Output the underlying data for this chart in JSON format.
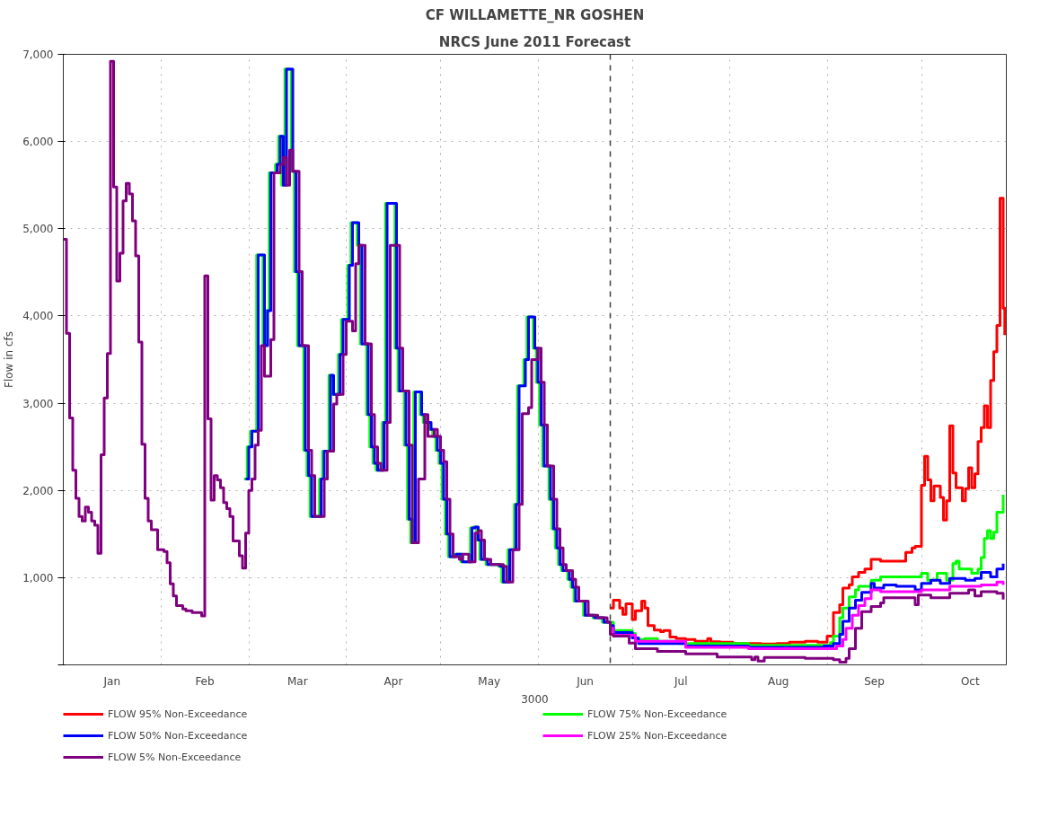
{
  "chart_data": {
    "type": "step",
    "title": "CF WILLAMETTE_NR GOSHEN",
    "subtitle": "NRCS June 2011 Forecast",
    "xlabel": "3000",
    "ylabel": "Flow in cfs",
    "xlim": [
      "3000-01-01",
      "3000-10-28"
    ],
    "ylim": [
      0,
      7000
    ],
    "xticks": [
      {
        "value": "3000-01-01",
        "label": null
      },
      {
        "value": "3000-01-16T12:00",
        "label": "Jan"
      },
      {
        "value": "3000-02-01",
        "label": null
      },
      {
        "value": "3000-02-15",
        "label": "Feb"
      },
      {
        "value": "3000-03-01",
        "label": null
      },
      {
        "value": "3000-03-16T12:00",
        "label": "Mar"
      },
      {
        "value": "3000-04-01",
        "label": null
      },
      {
        "value": "3000-04-16",
        "label": "Apr"
      },
      {
        "value": "3000-05-01",
        "label": null
      },
      {
        "value": "3000-05-16T12:00",
        "label": "May"
      },
      {
        "value": "3000-06-01",
        "label": null
      },
      {
        "value": "3000-06-16",
        "label": "Jun"
      },
      {
        "value": "3000-07-01",
        "label": null
      },
      {
        "value": "3000-07-16T12:00",
        "label": "Jul"
      },
      {
        "value": "3000-08-01",
        "label": null
      },
      {
        "value": "3000-08-16T12:00",
        "label": "Aug"
      },
      {
        "value": "3000-09-01",
        "label": null
      },
      {
        "value": "3000-09-16",
        "label": "Sep"
      },
      {
        "value": "3000-10-01",
        "label": null
      },
      {
        "value": "3000-10-16T12:00",
        "label": "Oct"
      }
    ],
    "yticks": [
      {
        "value": 0,
        "label": null
      },
      {
        "value": 1000,
        "label": "1,000"
      },
      {
        "value": 2000,
        "label": "2,000"
      },
      {
        "value": 3000,
        "label": "3,000"
      },
      {
        "value": 4000,
        "label": "4,000"
      },
      {
        "value": 5000,
        "label": "5,000"
      },
      {
        "value": 6000,
        "label": "6,000"
      },
      {
        "value": 7000,
        "label": "7,000"
      }
    ],
    "grid": true,
    "legend": "bottom",
    "line_style": "solid",
    "marker": "none",
    "ref_lines": [
      {
        "axis": "x",
        "value": "3000-06-24",
        "label": null,
        "color": "#404040",
        "line_style": "dashed"
      }
    ],
    "series": [
      {
        "name": "FLOW 95% Non-Exceedance",
        "color": "#ff0000",
        "x": [
          "3000-06-24",
          "3000-06-25",
          "3000-06-27",
          "3000-06-28",
          "3000-06-29",
          "3000-07-01",
          "3000-07-02",
          "3000-07-04",
          "3000-07-05",
          "3000-07-06",
          "3000-07-08",
          "3000-07-10",
          "3000-07-11",
          "3000-07-13",
          "3000-07-15",
          "3000-07-18",
          "3000-07-21",
          "3000-07-25",
          "3000-07-26",
          "3000-07-29",
          "3000-08-02",
          "3000-08-11",
          "3000-08-16",
          "3000-08-20",
          "3000-08-25",
          "3000-08-29",
          "3000-09-01",
          "3000-09-03",
          "3000-09-05",
          "3000-09-06",
          "3000-09-08",
          "3000-09-09",
          "3000-09-11",
          "3000-09-13",
          "3000-09-15",
          "3000-09-18",
          "3000-09-26",
          "3000-09-28",
          "3000-09-29",
          "3000-10-01",
          "3000-10-02",
          "3000-10-03",
          "3000-10-04",
          "3000-10-05",
          "3000-10-07",
          "3000-10-08",
          "3000-10-09",
          "3000-10-10",
          "3000-10-11",
          "3000-10-12",
          "3000-10-14",
          "3000-10-15",
          "3000-10-16",
          "3000-10-17",
          "3000-10-18",
          "3000-10-19",
          "3000-10-20",
          "3000-10-21",
          "3000-10-22",
          "3000-10-23",
          "3000-10-24",
          "3000-10-25",
          "3000-10-26",
          "3000-10-27",
          "3000-10-27T12:00"
        ],
        "values": [
          650,
          740,
          650,
          580,
          700,
          520,
          620,
          730,
          650,
          450,
          400,
          380,
          395,
          320,
          300,
          290,
          270,
          300,
          265,
          260,
          245,
          240,
          245,
          260,
          270,
          260,
          330,
          600,
          690,
          880,
          920,
          1010,
          1060,
          1100,
          1210,
          1190,
          1290,
          1340,
          1360,
          2060,
          2390,
          2120,
          1880,
          2050,
          1920,
          1660,
          1880,
          2740,
          2200,
          2030,
          1880,
          2020,
          2260,
          2030,
          2190,
          2560,
          2720,
          2970,
          2720,
          3260,
          3590,
          3890,
          5350,
          4090,
          3780
        ]
      },
      {
        "name": "FLOW 75% Non-Exceedance",
        "color": "#00ff00",
        "x": [
          "3000-02-27T12:00",
          "3000-02-28T12:00",
          "3000-03-01T12:00",
          "3000-03-03T12:00",
          "3000-03-05T12:00",
          "3000-03-06T12:00",
          "3000-03-07T12:00",
          "3000-03-09T12:00",
          "3000-03-10T12:00",
          "3000-03-11T12:00",
          "3000-03-12T12:00",
          "3000-03-14T12:00",
          "3000-03-15T12:00",
          "3000-03-16T12:00",
          "3000-03-18T12:00",
          "3000-03-19T12:00",
          "3000-03-20T12:00",
          "3000-03-23T12:00",
          "3000-03-24T12:00",
          "3000-03-26T12:00",
          "3000-03-27T12:00",
          "3000-03-29T12:00",
          "3000-03-30T12:00",
          "3000-04-01T12:00",
          "3000-04-02T12:00",
          "3000-04-04T12:00",
          "3000-04-05T12:00",
          "3000-04-07T12:00",
          "3000-04-08T12:00",
          "3000-04-09T12:00",
          "3000-04-10T12:00",
          "3000-04-12T12:00",
          "3000-04-13T12:00",
          "3000-04-16T12:00",
          "3000-04-17T12:00",
          "3000-04-19T12:00",
          "3000-04-20T12:00",
          "3000-04-21T12:00",
          "3000-04-22T12:00",
          "3000-04-24T12:00",
          "3000-04-25T12:00",
          "3000-04-27T12:00",
          "3000-04-28T12:00",
          "3000-04-29T12:00",
          "3000-04-30T12:00",
          "3000-05-01T12:00",
          "3000-05-02T12:00",
          "3000-05-03T12:00",
          "3000-05-05T12:00",
          "3000-05-07T12:00",
          "3000-05-10T12:00",
          "3000-05-11T12:00",
          "3000-05-12T12:00",
          "3000-05-13T12:00",
          "3000-05-15T12:00",
          "3000-05-19T12:00",
          "3000-05-20T12:00",
          "3000-05-22T12:00",
          "3000-05-24T12:00",
          "3000-05-25T12:00",
          "3000-05-27T12:00",
          "3000-05-28T12:00",
          "3000-05-30T12:00",
          "3000-05-31T12:00",
          "3000-06-01T12:00",
          "3000-06-02T12:00",
          "3000-06-04T12:00",
          "3000-06-05T12:00",
          "3000-06-06T12:00",
          "3000-06-07T12:00",
          "3000-06-08T12:00",
          "3000-06-10T12:00",
          "3000-06-11T12:00",
          "3000-06-12T12:00",
          "3000-06-15T12:00",
          "3000-06-18T12:00",
          "3000-06-21T12:00",
          "3000-06-24",
          "3000-06-25",
          "3000-07-01",
          "3000-07-02",
          "3000-07-05",
          "3000-07-09",
          "3000-07-16",
          "3000-08-07",
          "3000-09-02",
          "3000-09-03",
          "3000-09-05",
          "3000-09-06",
          "3000-09-08",
          "3000-09-10",
          "3000-09-11",
          "3000-09-15",
          "3000-09-18",
          "3000-10-01",
          "3000-10-03",
          "3000-10-06",
          "3000-10-09",
          "3000-10-11",
          "3000-10-12",
          "3000-10-13",
          "3000-10-17",
          "3000-10-19",
          "3000-10-20",
          "3000-10-21",
          "3000-10-22",
          "3000-10-23",
          "3000-10-24",
          "3000-10-25",
          "3000-10-27"
        ],
        "values": [
          2130,
          2500,
          2680,
          4700,
          3660,
          4060,
          5640,
          5740,
          6060,
          5500,
          6830,
          5660,
          4510,
          3660,
          2460,
          2170,
          1700,
          2130,
          2450,
          3320,
          3100,
          3560,
          3960,
          4580,
          5070,
          4810,
          3680,
          2870,
          2500,
          2310,
          2230,
          2780,
          5290,
          3630,
          3140,
          2520,
          1670,
          1400,
          3130,
          2870,
          2780,
          2700,
          2620,
          2460,
          2310,
          1900,
          1500,
          1240,
          1270,
          1180,
          1570,
          1580,
          1430,
          1210,
          1150,
          1130,
          950,
          1320,
          1840,
          3200,
          3500,
          3990,
          3630,
          3240,
          2750,
          2280,
          1900,
          1560,
          1340,
          1150,
          1080,
          980,
          890,
          730,
          570,
          540,
          490,
          490,
          395,
          360,
          290,
          300,
          270,
          245,
          225,
          255,
          330,
          540,
          650,
          780,
          860,
          900,
          970,
          1010,
          1050,
          970,
          1050,
          970,
          1160,
          1190,
          1100,
          1050,
          1100,
          1230,
          1450,
          1540,
          1450,
          1520,
          1750,
          1950
        ]
      },
      {
        "name": "FLOW 50% Non-Exceedance",
        "color": "#0000ff",
        "x": [
          "3000-02-28",
          "3000-03-01",
          "3000-03-02",
          "3000-03-04",
          "3000-03-06",
          "3000-03-07",
          "3000-03-08",
          "3000-03-10",
          "3000-03-11",
          "3000-03-12",
          "3000-03-13",
          "3000-03-15",
          "3000-03-16",
          "3000-03-17",
          "3000-03-19",
          "3000-03-20",
          "3000-03-21",
          "3000-03-24",
          "3000-03-25",
          "3000-03-27",
          "3000-03-28",
          "3000-03-30",
          "3000-03-31",
          "3000-04-02",
          "3000-04-03",
          "3000-04-05",
          "3000-04-06",
          "3000-04-08",
          "3000-04-09",
          "3000-04-10",
          "3000-04-11",
          "3000-04-13",
          "3000-04-14",
          "3000-04-17",
          "3000-04-18",
          "3000-04-20",
          "3000-04-21",
          "3000-04-22",
          "3000-04-23",
          "3000-04-25",
          "3000-04-26",
          "3000-04-28",
          "3000-04-29",
          "3000-04-30",
          "3000-05-01",
          "3000-05-02",
          "3000-05-03",
          "3000-05-04",
          "3000-05-06",
          "3000-05-08",
          "3000-05-11",
          "3000-05-12",
          "3000-05-13",
          "3000-05-14",
          "3000-05-16",
          "3000-05-20",
          "3000-05-21",
          "3000-05-23",
          "3000-05-25",
          "3000-05-26",
          "3000-05-28",
          "3000-05-29",
          "3000-05-31",
          "3000-06-01",
          "3000-06-02",
          "3000-06-03",
          "3000-06-05",
          "3000-06-06",
          "3000-06-07",
          "3000-06-08",
          "3000-06-09",
          "3000-06-11",
          "3000-06-12",
          "3000-06-13",
          "3000-06-16",
          "3000-06-19",
          "3000-06-22",
          "3000-06-24",
          "3000-06-25",
          "3000-07-01",
          "3000-07-03",
          "3000-07-18",
          "3000-08-07",
          "3000-08-31",
          "3000-09-03",
          "3000-09-05",
          "3000-09-06",
          "3000-09-08",
          "3000-09-10",
          "3000-09-12",
          "3000-09-15",
          "3000-09-16",
          "3000-09-19",
          "3000-09-23",
          "3000-09-29",
          "3000-10-01",
          "3000-10-04",
          "3000-10-07",
          "3000-10-10",
          "3000-10-15",
          "3000-10-18",
          "3000-10-20",
          "3000-10-23",
          "3000-10-25",
          "3000-10-27"
        ],
        "values": [
          2130,
          2500,
          2680,
          4700,
          3660,
          4060,
          5640,
          5740,
          6060,
          5500,
          6830,
          5660,
          4510,
          3660,
          2460,
          2170,
          1700,
          2130,
          2450,
          3320,
          3100,
          3560,
          3960,
          4580,
          5070,
          4810,
          3680,
          2870,
          2500,
          2310,
          2230,
          2780,
          5290,
          3630,
          3140,
          2520,
          1670,
          1400,
          3130,
          2870,
          2780,
          2700,
          2620,
          2460,
          2310,
          1900,
          1500,
          1240,
          1270,
          1180,
          1570,
          1580,
          1430,
          1210,
          1150,
          1130,
          950,
          1320,
          1840,
          3200,
          3500,
          3990,
          3630,
          3240,
          2750,
          2280,
          1900,
          1560,
          1340,
          1150,
          1080,
          980,
          890,
          730,
          570,
          540,
          490,
          450,
          370,
          310,
          245,
          215,
          200,
          215,
          245,
          350,
          500,
          650,
          740,
          830,
          935,
          880,
          915,
          900,
          860,
          935,
          970,
          935,
          990,
          970,
          990,
          1060,
          1010,
          1100,
          1160
        ]
      },
      {
        "name": "FLOW 25% Non-Exceedance",
        "color": "#ff00ff",
        "x": [
          "3000-06-24",
          "3000-06-25",
          "3000-07-02",
          "3000-07-18",
          "3000-08-07",
          "3000-09-04",
          "3000-09-06",
          "3000-09-07",
          "3000-09-09",
          "3000-09-11",
          "3000-09-13",
          "3000-09-15",
          "3000-09-18",
          "3000-10-01",
          "3000-10-10",
          "3000-10-20",
          "3000-10-25",
          "3000-10-27"
        ],
        "values": [
          420,
          340,
          270,
          200,
          185,
          215,
          290,
          420,
          570,
          680,
          760,
          860,
          840,
          860,
          900,
          915,
          950,
          915
        ]
      },
      {
        "name": "FLOW 5% Non-Exceedance",
        "color": "#800080",
        "x": [
          "3000-01-01",
          "3000-01-02",
          "3000-01-03",
          "3000-01-04",
          "3000-01-05",
          "3000-01-06",
          "3000-01-07",
          "3000-01-08",
          "3000-01-09",
          "3000-01-10",
          "3000-01-11",
          "3000-01-12",
          "3000-01-13",
          "3000-01-14",
          "3000-01-15",
          "3000-01-16",
          "3000-01-17",
          "3000-01-18",
          "3000-01-19",
          "3000-01-20",
          "3000-01-21",
          "3000-01-22",
          "3000-01-23",
          "3000-01-24",
          "3000-01-25",
          "3000-01-26",
          "3000-01-27",
          "3000-01-28",
          "3000-01-29",
          "3000-01-31",
          "3000-02-02",
          "3000-02-03",
          "3000-02-04",
          "3000-02-05",
          "3000-02-06",
          "3000-02-08",
          "3000-02-09",
          "3000-02-11",
          "3000-02-14",
          "3000-02-15",
          "3000-02-16",
          "3000-02-17",
          "3000-02-18",
          "3000-02-19",
          "3000-02-20",
          "3000-02-21",
          "3000-02-22",
          "3000-02-23",
          "3000-02-24",
          "3000-02-26",
          "3000-02-27",
          "3000-02-28",
          "3000-03-01",
          "3000-03-02",
          "3000-03-03",
          "3000-03-04",
          "3000-03-05",
          "3000-03-06",
          "3000-03-08",
          "3000-03-09",
          "3000-03-11",
          "3000-03-12",
          "3000-03-13",
          "3000-03-14",
          "3000-03-15",
          "3000-03-17",
          "3000-03-18",
          "3000-03-20",
          "3000-03-21",
          "3000-03-22",
          "3000-03-25",
          "3000-03-26",
          "3000-03-28",
          "3000-03-29",
          "3000-03-31",
          "3000-04-01",
          "3000-04-03",
          "3000-04-04",
          "3000-04-05",
          "3000-04-07",
          "3000-04-09",
          "3000-04-10",
          "3000-04-11",
          "3000-04-12",
          "3000-04-14",
          "3000-04-15",
          "3000-04-18",
          "3000-04-19",
          "3000-04-21",
          "3000-04-22",
          "3000-04-24",
          "3000-04-26",
          "3000-04-27",
          "3000-04-29",
          "3000-04-30",
          "3000-05-01",
          "3000-05-02",
          "3000-05-03",
          "3000-05-04",
          "3000-05-05",
          "3000-05-07",
          "3000-05-08",
          "3000-05-10",
          "3000-05-12",
          "3000-05-13",
          "3000-05-14",
          "3000-05-15",
          "3000-05-17",
          "3000-05-21",
          "3000-05-22",
          "3000-05-24",
          "3000-05-26",
          "3000-05-27",
          "3000-05-29",
          "3000-05-30",
          "3000-06-01",
          "3000-06-02",
          "3000-06-03",
          "3000-06-04",
          "3000-06-06",
          "3000-06-07",
          "3000-06-08",
          "3000-06-09",
          "3000-06-10",
          "3000-06-12",
          "3000-06-13",
          "3000-06-14",
          "3000-06-17",
          "3000-06-20",
          "3000-06-23",
          "3000-06-24",
          "3000-06-25",
          "3000-06-30",
          "3000-07-02",
          "3000-07-09",
          "3000-07-18",
          "3000-07-28",
          "3000-08-08",
          "3000-08-09",
          "3000-08-10",
          "3000-08-12",
          "3000-08-25",
          "3000-09-03",
          "3000-09-05",
          "3000-09-07",
          "3000-09-08",
          "3000-09-10",
          "3000-09-12",
          "3000-09-15",
          "3000-09-18",
          "3000-09-19",
          "3000-09-29",
          "3000-09-30",
          "3000-10-04",
          "3000-10-10",
          "3000-10-16",
          "3000-10-18",
          "3000-10-20",
          "3000-10-25",
          "3000-10-27"
        ],
        "values": [
          4880,
          3800,
          2830,
          2230,
          1910,
          1700,
          1650,
          1810,
          1750,
          1650,
          1600,
          1280,
          2410,
          3060,
          3570,
          6920,
          5480,
          4400,
          4720,
          5320,
          5520,
          5400,
          5090,
          4690,
          3700,
          2530,
          1910,
          1650,
          1550,
          1320,
          1300,
          1170,
          930,
          790,
          680,
          640,
          620,
          600,
          560,
          4460,
          2820,
          1890,
          2170,
          2120,
          2030,
          1860,
          1790,
          1700,
          1420,
          1250,
          1110,
          1510,
          2000,
          2130,
          2520,
          2690,
          3660,
          3310,
          3730,
          5640,
          5740,
          5820,
          5500,
          5900,
          5660,
          4510,
          3660,
          2460,
          2170,
          1700,
          2130,
          2450,
          2990,
          3100,
          3560,
          3940,
          3830,
          4600,
          4810,
          3680,
          2870,
          2500,
          2310,
          2230,
          2780,
          4810,
          3630,
          3140,
          2520,
          1400,
          2130,
          2870,
          2620,
          2700,
          2620,
          2460,
          2330,
          1900,
          1500,
          1240,
          1210,
          1270,
          1180,
          1510,
          1540,
          1430,
          1210,
          1150,
          1130,
          950,
          1320,
          1840,
          2880,
          2950,
          3500,
          3630,
          3240,
          2750,
          2280,
          1900,
          1560,
          1340,
          1150,
          1080,
          980,
          890,
          730,
          570,
          540,
          490,
          350,
          330,
          250,
          185,
          155,
          125,
          90,
          60,
          90,
          45,
          85,
          75,
          60,
          30,
          75,
          185,
          420,
          610,
          670,
          710,
          770,
          690,
          800,
          770,
          820,
          860,
          790,
          840,
          820,
          750
        ]
      }
    ]
  }
}
